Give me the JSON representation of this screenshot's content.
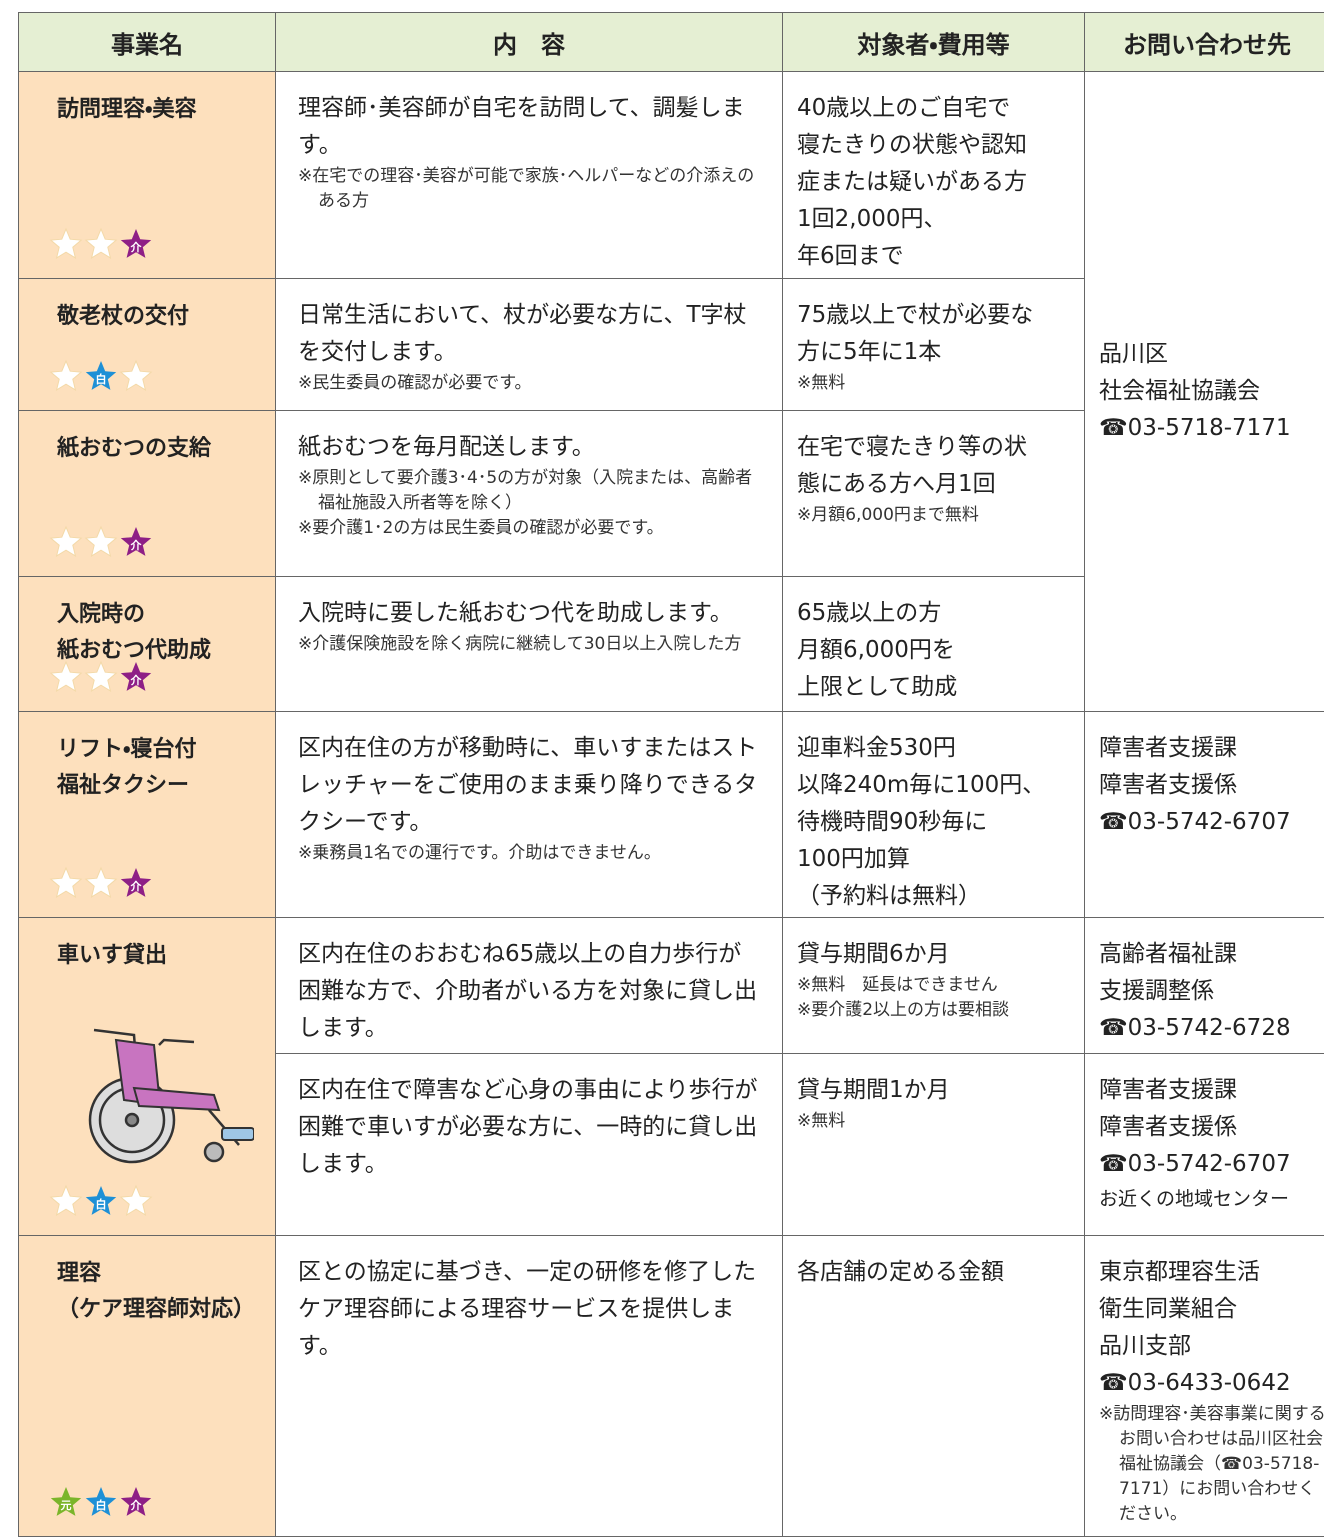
{
  "header": [
    "事業名",
    "内　容",
    "対象者・費用等",
    "お問い合わせ先"
  ],
  "rows": [
    {
      "name": [
        "訪問理容・美容"
      ],
      "icons": [
        null,
        null,
        "介"
      ],
      "items": [
        {
          "content": {
            "text": "理容師･美容師が自宅を訪問して、調髪します。",
            "notes": [
              "※在宅での理容･美容が可能で家族･ヘルパーなどの介添えのある方"
            ]
          },
          "target": {
            "lines": [
              "40歳以上のご自宅で",
              "寝たきりの状態や認知",
              "症または疑いがある方",
              "1回2,000円、",
              "年6回まで"
            ],
            "notes": []
          }
        }
      ]
    },
    {
      "name": [
        "敬老杖の交付"
      ],
      "icons": [
        null,
        "白",
        null
      ],
      "items": [
        {
          "content": {
            "text": "日常生活において、杖が必要な方に、T字杖を交付します。",
            "notes": [
              "※民生委員の確認が必要です。"
            ]
          },
          "target": {
            "lines": [
              "75歳以上で杖が必要な",
              "方に5年に1本"
            ],
            "notes": [
              "※無料"
            ]
          }
        }
      ]
    },
    {
      "name": [
        "紙おむつの支給"
      ],
      "icons": [
        null,
        null,
        "介"
      ],
      "items": [
        {
          "content": {
            "text": "紙おむつを毎月配送します。",
            "notes": [
              "※原則として要介護3･4･5の方が対象（入院または、高齢者福祉施設入所者等を除く）",
              "※要介護1･2の方は民生委員の確認が必要です。"
            ]
          },
          "target": {
            "lines": [
              "在宅で寝たきり等の状",
              "態にある方へ月1回"
            ],
            "notes": [
              "※月額6,000円まで無料"
            ]
          }
        }
      ]
    },
    {
      "name": [
        "入院時の",
        "紙おむつ代助成"
      ],
      "icons": [
        null,
        null,
        "介"
      ],
      "items": [
        {
          "content": {
            "text": "入院時に要した紙おむつ代を助成します。",
            "notes": [
              "※介護保険施設を除く病院に継続して30日以上入院した方"
            ]
          },
          "target": {
            "lines": [
              "65歳以上の方",
              "月額6,000円を",
              "上限として助成"
            ],
            "notes": []
          }
        }
      ]
    },
    {
      "name": [
        "リフト・寝台付",
        "福祉タクシー"
      ],
      "icons": [
        null,
        null,
        "介"
      ],
      "items": [
        {
          "content": {
            "text": "区内在住の方が移動時に、車いすまたはストレッチャーをご使用のまま乗り降りできるタクシーです。",
            "notes": [
              "※乗務員1名での運行です。介助はできません。"
            ]
          },
          "target": {
            "lines": [
              "迎車料金530円",
              "以降240m毎に100円、",
              "待機時間90秒毎に",
              "100円加算",
              "（予約料は無料）"
            ],
            "notes": []
          }
        }
      ]
    },
    {
      "name": [
        "車いす貸出"
      ],
      "icons": [
        null,
        "白",
        null
      ],
      "items": [
        {
          "content": {
            "text": "区内在住のおおむね65歳以上の自力歩行が困難な方で、介助者がいる方を対象に貸し出します。",
            "notes": []
          },
          "target": {
            "lines": [
              "貸与期間6か月"
            ],
            "notes": [
              "※無料　延長はできません",
              "※要介護2以上の方は要相談"
            ]
          }
        },
        {
          "content": {
            "text": "区内在住で障害など心身の事由により歩行が困難で車いすが必要な方に、一時的に貸し出します。",
            "notes": []
          },
          "target": {
            "lines": [
              "貸与期間1か月"
            ],
            "notes": [
              "※無料"
            ]
          }
        }
      ]
    },
    {
      "name": [
        "理容",
        "（ケア理容師対応）"
      ],
      "icons": [
        "元",
        "白",
        "介"
      ],
      "items": [
        {
          "content": {
            "text": "区との協定に基づき、一定の研修を修了したケア理容師による理容サービスを提供します。",
            "notes": []
          },
          "target": {
            "lines": [
              "各店舗の定める金額"
            ],
            "notes": []
          }
        }
      ]
    }
  ],
  "contacts": [
    {
      "lines": [
        "品川区",
        "社会福祉協議会",
        "☎03-5718-7171"
      ],
      "notes": []
    },
    {
      "lines": [
        "障害者支援課",
        "障害者支援係",
        "☎03-5742-6707"
      ],
      "notes": []
    },
    {
      "lines": [
        "高齢者福祉課",
        "支援調整係",
        "☎03-5742-6728"
      ],
      "notes": []
    },
    {
      "lines": [
        "障害者支援課",
        "障害者支援係",
        "☎03-5742-6707"
      ],
      "notes": [
        "お近くの地域センター"
      ]
    },
    {
      "lines": [
        "東京都理容生活",
        "衛生同業組合",
        "品川支部",
        "☎03-6433-0642"
      ],
      "notes": [
        "※訪問理容･美容事業に関するお問い合わせは品川区社会福祉協議会（☎03-5718-7171）にお問い合わせください。"
      ]
    }
  ]
}
